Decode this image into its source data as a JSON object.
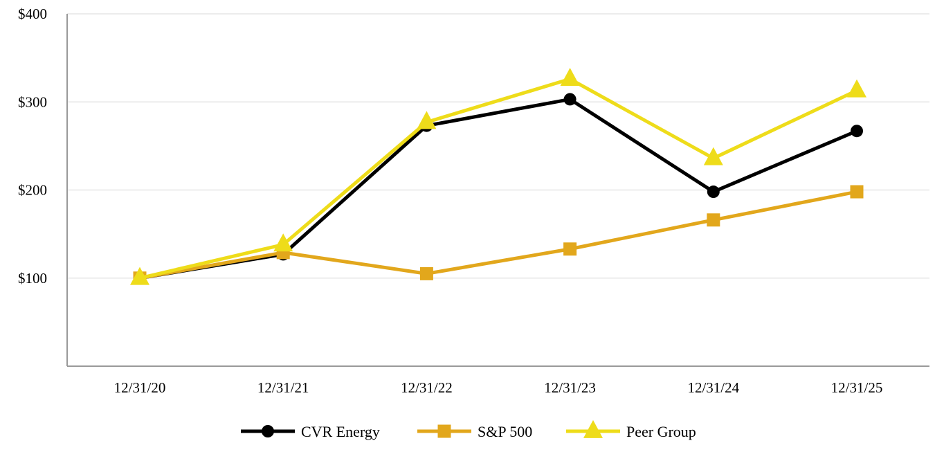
{
  "chart_data": {
    "type": "line",
    "title": "",
    "xlabel": "",
    "ylabel": "",
    "categories": [
      "12/31/20",
      "12/31/21",
      "12/31/22",
      "12/31/23",
      "12/31/24",
      "12/31/25"
    ],
    "y_tick_labels": [
      "$100",
      "$200",
      "$300",
      "$400"
    ],
    "y_ticks": [
      100,
      200,
      300,
      400
    ],
    "ylim": [
      0,
      400
    ],
    "grid": "horizontal",
    "legend_position": "bottom-center",
    "series": [
      {
        "name": "CVR Energy",
        "marker": "circle",
        "color": "#000000",
        "values": [
          100,
          127,
          273,
          303,
          198,
          267
        ]
      },
      {
        "name": "S&P 500",
        "marker": "square",
        "color": "#E2A71C",
        "values": [
          100,
          129,
          105,
          133,
          166,
          198
        ]
      },
      {
        "name": "Peer Group",
        "marker": "triangle",
        "color": "#EEDC1A",
        "values": [
          100,
          138,
          277,
          326,
          236,
          313
        ]
      }
    ]
  }
}
